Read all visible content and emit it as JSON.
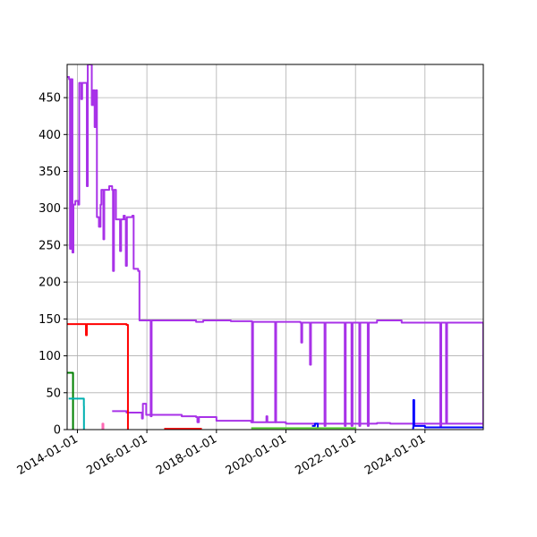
{
  "chart_data": {
    "type": "line",
    "title": "",
    "xlabel": "",
    "ylabel": "",
    "x_type": "date",
    "xlim": [
      "2013-09-15",
      "2025-09-05"
    ],
    "ylim": [
      0,
      495
    ],
    "grid": true,
    "legend": "none",
    "x_ticks": [
      "2014-01-01",
      "2016-01-01",
      "2018-01-01",
      "2020-01-01",
      "2022-01-01",
      "2024-01-01"
    ],
    "y_ticks": [
      0,
      50,
      100,
      150,
      200,
      250,
      300,
      350,
      400,
      450
    ],
    "series": [
      {
        "color": "#a832e8",
        "points": [
          [
            "2013-09-15",
            478
          ],
          [
            "2013-10-05",
            475
          ],
          [
            "2013-10-15",
            245
          ],
          [
            "2013-10-25",
            475
          ],
          [
            "2013-11-10",
            240
          ],
          [
            "2013-11-20",
            305
          ],
          [
            "2013-12-10",
            310
          ],
          [
            "2014-01-10",
            305
          ],
          [
            "2014-01-20",
            470
          ],
          [
            "2014-02-10",
            448
          ],
          [
            "2014-02-20",
            470
          ],
          [
            "2014-04-01",
            470
          ],
          [
            "2014-04-10",
            330
          ],
          [
            "2014-04-20",
            495
          ],
          [
            "2014-05-20",
            495
          ],
          [
            "2014-06-01",
            440
          ],
          [
            "2014-06-15",
            460
          ],
          [
            "2014-07-01",
            410
          ],
          [
            "2014-07-15",
            460
          ],
          [
            "2014-07-25",
            288
          ],
          [
            "2014-08-15",
            275
          ],
          [
            "2014-09-01",
            305
          ],
          [
            "2014-09-10",
            325
          ],
          [
            "2014-09-20",
            325
          ],
          [
            "2014-10-01",
            258
          ],
          [
            "2014-10-10",
            325
          ],
          [
            "2014-12-01",
            330
          ],
          [
            "2015-01-01",
            325
          ],
          [
            "2015-01-10",
            215
          ],
          [
            "2015-01-20",
            325
          ],
          [
            "2015-02-10",
            285
          ],
          [
            "2015-03-15",
            285
          ],
          [
            "2015-03-25",
            242
          ],
          [
            "2015-04-05",
            285
          ],
          [
            "2015-05-01",
            290
          ],
          [
            "2015-05-15",
            285
          ],
          [
            "2015-05-25",
            222
          ],
          [
            "2015-06-05",
            288
          ],
          [
            "2015-08-01",
            290
          ],
          [
            "2015-08-15",
            218
          ],
          [
            "2015-10-01",
            215
          ],
          [
            "2015-10-15",
            148
          ],
          [
            "2016-01-01",
            148
          ],
          [
            "2016-02-01",
            148
          ],
          [
            "2016-02-10",
            18
          ],
          [
            "2016-02-20",
            148
          ],
          [
            "2017-05-01",
            148
          ],
          [
            "2017-06-01",
            146
          ],
          [
            "2017-08-01",
            146
          ],
          [
            "2017-08-15",
            148
          ],
          [
            "2018-01-01",
            148
          ],
          [
            "2018-06-01",
            147
          ],
          [
            "2019-01-01",
            147
          ],
          [
            "2019-01-10",
            10
          ],
          [
            "2019-01-20",
            146
          ],
          [
            "2019-09-01",
            146
          ],
          [
            "2019-09-10",
            10
          ],
          [
            "2019-09-20",
            146
          ],
          [
            "2020-06-01",
            145
          ],
          [
            "2020-06-10",
            118
          ],
          [
            "2020-06-20",
            145
          ],
          [
            "2020-09-01",
            145
          ],
          [
            "2020-09-10",
            88
          ],
          [
            "2020-09-20",
            145
          ],
          [
            "2021-02-01",
            145
          ],
          [
            "2021-02-10",
            5
          ],
          [
            "2021-02-20",
            145
          ],
          [
            "2021-09-01",
            145
          ],
          [
            "2021-09-10",
            5
          ],
          [
            "2021-09-20",
            145
          ],
          [
            "2021-11-10",
            145
          ],
          [
            "2021-11-20",
            5
          ],
          [
            "2021-12-01",
            145
          ],
          [
            "2022-02-01",
            145
          ],
          [
            "2022-02-10",
            5
          ],
          [
            "2022-02-20",
            145
          ],
          [
            "2022-05-01",
            145
          ],
          [
            "2022-05-10",
            5
          ],
          [
            "2022-05-20",
            145
          ],
          [
            "2022-08-01",
            145
          ],
          [
            "2022-08-15",
            148
          ],
          [
            "2023-05-01",
            145
          ],
          [
            "2024-06-01",
            145
          ],
          [
            "2024-06-10",
            5
          ],
          [
            "2024-06-20",
            145
          ],
          [
            "2024-08-01",
            145
          ],
          [
            "2024-08-10",
            10
          ],
          [
            "2024-08-20",
            145
          ],
          [
            "2025-09-01",
            145
          ],
          [
            "2025-09-05",
            5
          ]
        ]
      },
      {
        "color": "#a832e8",
        "points": [
          [
            "2015-01-01",
            25
          ],
          [
            "2015-06-01",
            23
          ],
          [
            "2015-11-01",
            23
          ],
          [
            "2015-11-10",
            15
          ],
          [
            "2015-11-20",
            35
          ],
          [
            "2015-12-15",
            35
          ],
          [
            "2015-12-25",
            20
          ],
          [
            "2016-06-01",
            20
          ],
          [
            "2017-01-01",
            18
          ],
          [
            "2017-06-01",
            17
          ],
          [
            "2017-06-15",
            10
          ],
          [
            "2017-07-01",
            17
          ],
          [
            "2018-01-01",
            12
          ],
          [
            "2018-06-01",
            12
          ],
          [
            "2019-01-01",
            10
          ],
          [
            "2019-06-01",
            10
          ],
          [
            "2019-06-10",
            18
          ],
          [
            "2019-06-20",
            10
          ],
          [
            "2020-01-01",
            8
          ],
          [
            "2022-08-01",
            8
          ],
          [
            "2022-08-15",
            9
          ],
          [
            "2023-01-01",
            8
          ],
          [
            "2025-09-05",
            8
          ]
        ]
      },
      {
        "color": "#ff0000",
        "points": [
          [
            "2013-09-15",
            143
          ],
          [
            "2014-02-01",
            143
          ],
          [
            "2014-03-15",
            143
          ],
          [
            "2014-04-01",
            128
          ],
          [
            "2014-04-10",
            143
          ],
          [
            "2015-06-01",
            142
          ],
          [
            "2015-06-15",
            142
          ],
          [
            "2015-06-16",
            0
          ]
        ]
      },
      {
        "color": "#ff0000",
        "points": [
          [
            "2016-07-01",
            1
          ],
          [
            "2017-08-01",
            1
          ]
        ]
      },
      {
        "color": "#008000",
        "points": [
          [
            "2013-09-15",
            77
          ],
          [
            "2013-11-15",
            77
          ],
          [
            "2013-11-16",
            0
          ]
        ]
      },
      {
        "color": "#00b0b0",
        "points": [
          [
            "2013-10-01",
            42
          ],
          [
            "2014-03-01",
            42
          ],
          [
            "2014-03-10",
            32
          ],
          [
            "2014-03-11",
            0
          ]
        ]
      },
      {
        "color": "#ff69b4",
        "points": [
          [
            "2014-09-20",
            0
          ],
          [
            "2014-09-21",
            8
          ],
          [
            "2014-10-01",
            0
          ]
        ]
      },
      {
        "color": "#0000ff",
        "points": [
          [
            "2023-08-20",
            2
          ],
          [
            "2023-09-01",
            40
          ],
          [
            "2023-09-10",
            5
          ],
          [
            "2024-01-01",
            3
          ],
          [
            "2024-06-01",
            3
          ],
          [
            "2025-09-05",
            3
          ]
        ]
      },
      {
        "color": "#0000ff",
        "points": [
          [
            "2020-10-01",
            5
          ],
          [
            "2020-11-01",
            8
          ],
          [
            "2020-12-01",
            3
          ]
        ]
      },
      {
        "color": "#55cc33",
        "points": [
          [
            "2019-01-01",
            2
          ],
          [
            "2021-03-01",
            2
          ],
          [
            "2022-01-01",
            1
          ]
        ]
      }
    ]
  }
}
